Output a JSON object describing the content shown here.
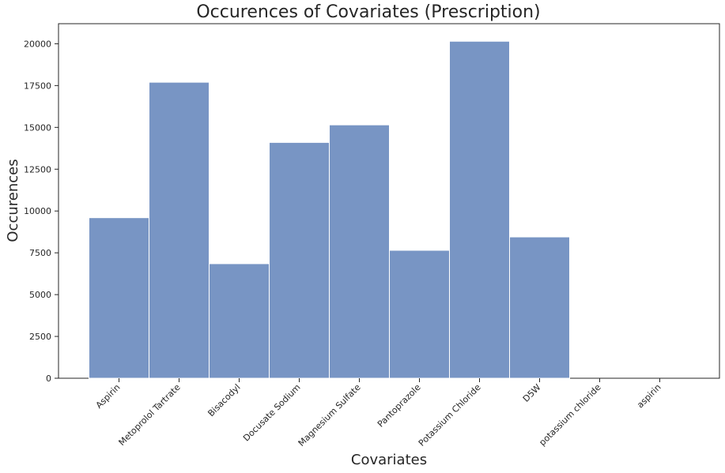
{
  "chart_data": {
    "type": "bar",
    "title": "Occurences of Covariates (Prescription)",
    "xlabel": "Covariates",
    "ylabel": "Occurences",
    "categories": [
      "Aspirin",
      "Metoprolol Tartrate",
      "Bisacodyl",
      "Docusate Sodium",
      "Magnesium Sulfate",
      "Pantoprazole",
      "Potassium Chloride",
      "D5W",
      "potassium chloride",
      "aspirin"
    ],
    "values": [
      9600,
      17700,
      6850,
      14100,
      15150,
      7650,
      20150,
      8450,
      0,
      0
    ],
    "ylim": [
      0,
      21200
    ],
    "yticks": [
      "0",
      "2500",
      "5000",
      "7500",
      "10000",
      "12500",
      "15000",
      "17500",
      "20000"
    ],
    "grid": false,
    "bar_color": "#7895c4"
  }
}
